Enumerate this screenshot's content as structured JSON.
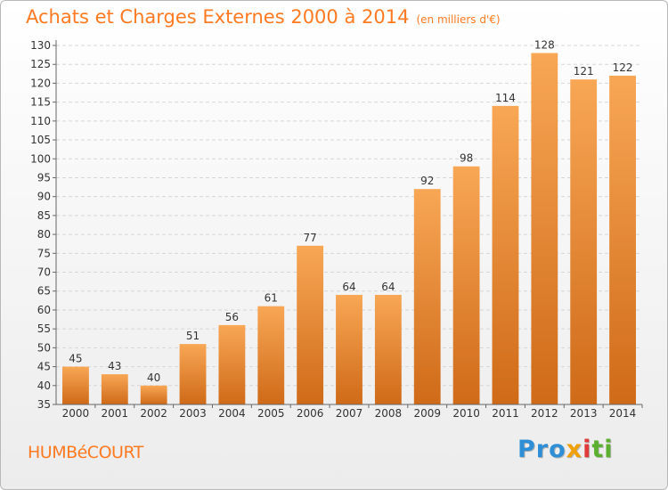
{
  "header": {
    "title": "Achats et Charges Externes 2000 à 2014",
    "unit": "(en milliers d'€)"
  },
  "footer": {
    "commune": "HUMBéCOURT",
    "logo": {
      "p1": "Pro",
      "p2": "x",
      "p3": "i",
      "p4": "ti"
    }
  },
  "colors": {
    "bar_light": "#f8a755",
    "bar_dark": "#cf6a18",
    "title": "#ff7a21"
  },
  "chart_data": {
    "type": "bar",
    "title": "Achats et Charges Externes 2000 à 2014",
    "subtitle": "(en milliers d'€)",
    "categories": [
      "2000",
      "2001",
      "2002",
      "2003",
      "2004",
      "2005",
      "2006",
      "2007",
      "2008",
      "2009",
      "2010",
      "2011",
      "2012",
      "2013",
      "2014"
    ],
    "values": [
      45,
      43,
      40,
      51,
      56,
      61,
      77,
      64,
      64,
      92,
      98,
      114,
      128,
      121,
      122
    ],
    "ylim": [
      35,
      130
    ],
    "yticks": [
      35,
      40,
      45,
      50,
      55,
      60,
      65,
      70,
      75,
      80,
      85,
      90,
      95,
      100,
      105,
      110,
      115,
      120,
      125,
      130
    ],
    "grid": true
  }
}
